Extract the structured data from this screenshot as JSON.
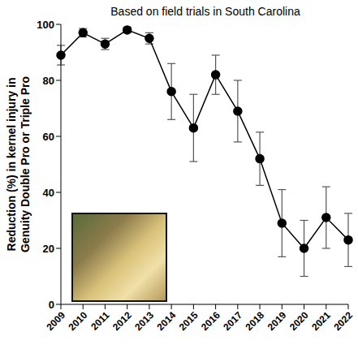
{
  "chart_data": {
    "type": "line",
    "title": "Based on field trials in South Carolina",
    "y_label": "Reduction (%) in kernel injury in Genuity Double Pro or Triple Pro",
    "categories": [
      "2009",
      "2010",
      "2011",
      "2012",
      "2013",
      "2014",
      "2015",
      "2016",
      "2017",
      "2018",
      "2019",
      "2020",
      "2021",
      "2022"
    ],
    "values": [
      89,
      97,
      93,
      98,
      95,
      76,
      63,
      82,
      69,
      52,
      29,
      20,
      31,
      23
    ],
    "error": [
      3.5,
      1.5,
      2,
      1,
      2,
      10,
      12,
      7,
      11,
      9.5,
      12,
      10,
      11,
      9.5
    ],
    "color": "#000000",
    "marker": "circle",
    "ylim": [
      0,
      100
    ],
    "yticks": [
      0,
      20,
      40,
      60,
      80,
      100
    ],
    "grid": false
  }
}
